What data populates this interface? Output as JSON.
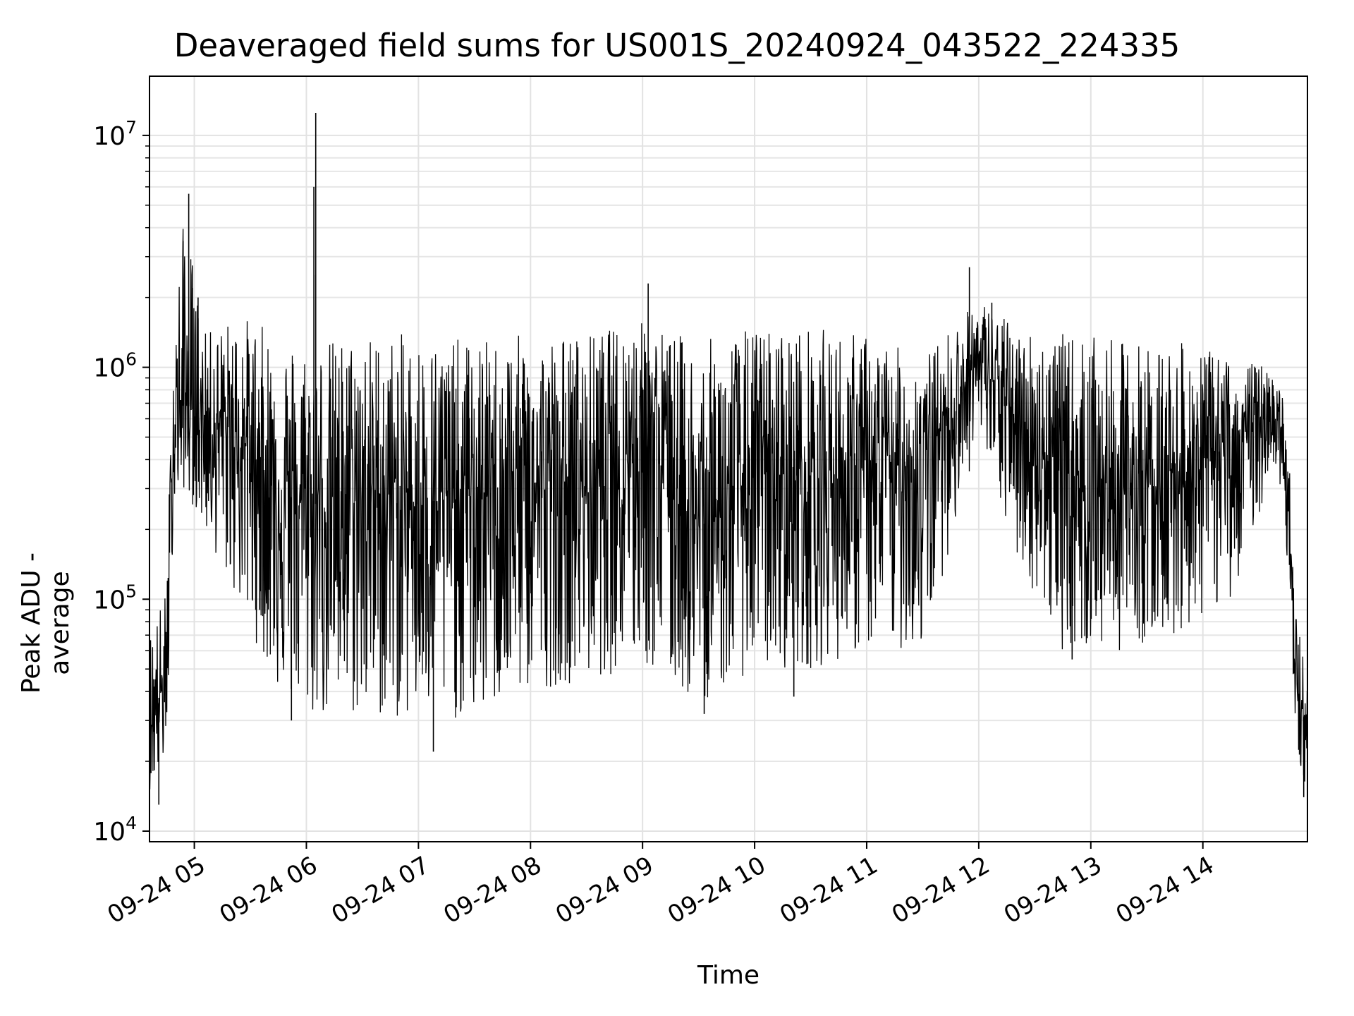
{
  "chart_data": {
    "type": "line",
    "title": "Deaveraged field sums for US001S_20240924_043522_224335",
    "xlabel": "Time",
    "ylabel": "Peak ADU - average",
    "y_scale": "log",
    "grid": "on (major and minor)",
    "line_color": "#000000",
    "xlim": [
      "09-24 04:36",
      "09-24 14:56"
    ],
    "ylim": [
      9000,
      18000000
    ],
    "x_ticks": [
      "09-24 05",
      "09-24 06",
      "09-24 07",
      "09-24 08",
      "09-24 09",
      "09-24 10",
      "09-24 11",
      "09-24 12",
      "09-24 13",
      "09-24 14"
    ],
    "y_ticks": [
      10000,
      100000,
      1000000,
      10000000
    ],
    "y_tick_labels": [
      {
        "base": "10",
        "exp": "4"
      },
      {
        "base": "10",
        "exp": "5"
      },
      {
        "base": "10",
        "exp": "6"
      },
      {
        "base": "10",
        "exp": "7"
      }
    ],
    "series": [
      {
        "envelope": [
          {
            "t": "09-24 04:36",
            "high": 75000,
            "low": 15000,
            "mid": 30000
          },
          {
            "t": "09-24 04:45",
            "high": 110000,
            "low": 20000,
            "mid": 45000
          },
          {
            "t": "09-24 04:49",
            "high": 1600000,
            "low": 260000,
            "mid": 600000
          },
          {
            "t": "09-24 04:55",
            "high": 5000000,
            "low": 300000,
            "mid": 700000
          },
          {
            "t": "09-24 05:05",
            "high": 1400000,
            "low": 200000,
            "mid": 600000
          },
          {
            "t": "09-24 05:25",
            "high": 1700000,
            "low": 90000,
            "mid": 500000
          },
          {
            "t": "09-24 05:45",
            "high": 1400000,
            "low": 40000,
            "mid": 300000
          },
          {
            "t": "09-24 06:00",
            "high": 1300000,
            "low": 30000,
            "mid": 250000
          },
          {
            "t": "09-24 06:30",
            "high": 1400000,
            "low": 30000,
            "mid": 300000
          },
          {
            "t": "09-24 07:00",
            "high": 1400000,
            "low": 30000,
            "mid": 260000
          },
          {
            "t": "09-24 07:30",
            "high": 1300000,
            "low": 30000,
            "mid": 280000
          },
          {
            "t": "09-24 08:00",
            "high": 1400000,
            "low": 40000,
            "mid": 300000
          },
          {
            "t": "09-24 08:30",
            "high": 1400000,
            "low": 45000,
            "mid": 320000
          },
          {
            "t": "09-24 09:00",
            "high": 1600000,
            "low": 50000,
            "mid": 600000
          },
          {
            "t": "09-24 09:30",
            "high": 1300000,
            "low": 35000,
            "mid": 200000
          },
          {
            "t": "09-24 10:00",
            "high": 1500000,
            "low": 50000,
            "mid": 350000
          },
          {
            "t": "09-24 10:30",
            "high": 1500000,
            "low": 50000,
            "mid": 330000
          },
          {
            "t": "09-24 11:00",
            "high": 1400000,
            "low": 60000,
            "mid": 350000
          },
          {
            "t": "09-24 11:30",
            "high": 1100000,
            "low": 60000,
            "mid": 400000
          },
          {
            "t": "09-24 12:00",
            "high": 2000000,
            "low": 500000,
            "mid": 1100000
          },
          {
            "t": "09-24 12:20",
            "high": 1500000,
            "low": 150000,
            "mid": 600000
          },
          {
            "t": "09-24 12:45",
            "high": 1400000,
            "low": 60000,
            "mid": 350000
          },
          {
            "t": "09-24 13:15",
            "high": 1300000,
            "low": 60000,
            "mid": 300000
          },
          {
            "t": "09-24 13:45",
            "high": 1300000,
            "low": 70000,
            "mid": 350000
          },
          {
            "t": "09-24 14:15",
            "high": 1100000,
            "low": 100000,
            "mid": 450000
          },
          {
            "t": "09-24 14:40",
            "high": 1000000,
            "low": 400000,
            "mid": 700000
          },
          {
            "t": "09-24 14:46",
            "high": 500000,
            "low": 100000,
            "mid": 250000
          },
          {
            "t": "09-24 14:49",
            "high": 100000,
            "low": 25000,
            "mid": 50000
          },
          {
            "t": "09-24 14:56",
            "high": 45000,
            "low": 14000,
            "mid": 25000
          }
        ],
        "spikes": [
          {
            "t": "09-24 04:54",
            "value": 3500000
          },
          {
            "t": "09-24 04:57",
            "value": 5600000
          },
          {
            "t": "09-24 04:59",
            "value": 2200000
          },
          {
            "t": "09-24 05:02",
            "value": 2000000
          },
          {
            "t": "09-24 06:04",
            "value": 6000000
          },
          {
            "t": "09-24 06:05",
            "value": 12500000
          },
          {
            "t": "09-24 06:05",
            "value": 2500000
          },
          {
            "t": "09-24 09:03",
            "value": 2300000
          },
          {
            "t": "09-24 11:55",
            "value": 2700000
          },
          {
            "t": "09-24 12:07",
            "value": 1900000
          }
        ],
        "dips": [
          {
            "t": "09-24 04:41",
            "value": 13000
          },
          {
            "t": "09-24 05:35",
            "value": 90000
          },
          {
            "t": "09-24 05:52",
            "value": 30000
          },
          {
            "t": "09-24 07:08",
            "value": 22000
          },
          {
            "t": "09-24 09:33",
            "value": 32000
          },
          {
            "t": "09-24 10:21",
            "value": 38000
          },
          {
            "t": "09-24 12:50",
            "value": 55000
          },
          {
            "t": "09-24 14:54",
            "value": 14000
          }
        ]
      }
    ]
  }
}
